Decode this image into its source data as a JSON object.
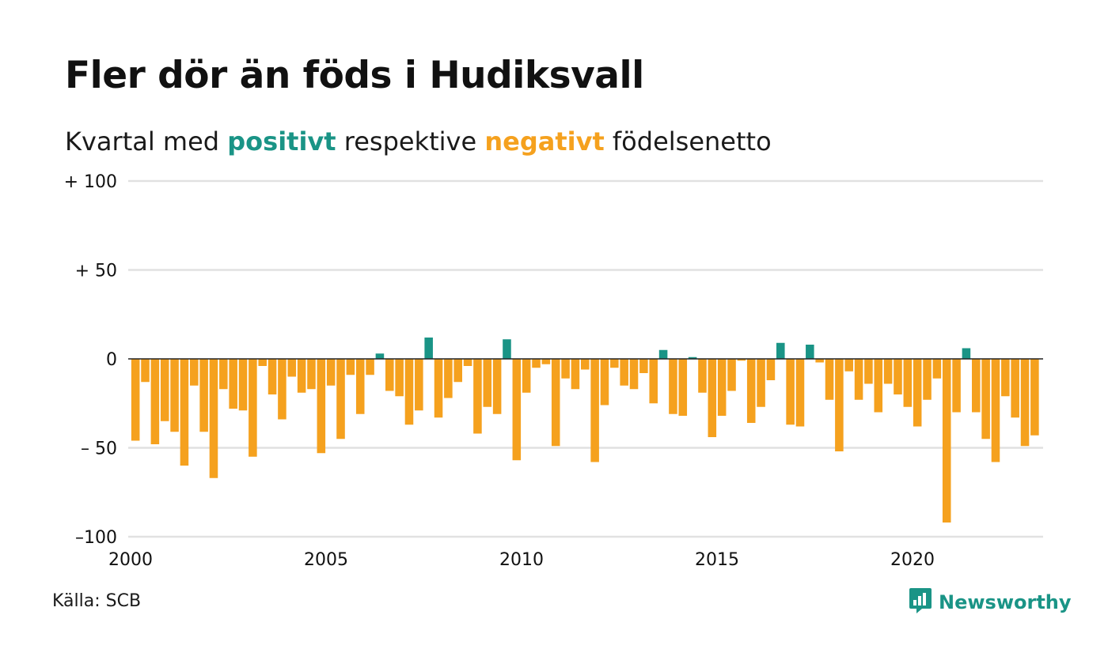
{
  "header": {
    "title": "Fler dör än föds i Hudiksvall",
    "subtitle_prefix": "Kvartal med",
    "subtitle_positive": "positivt",
    "subtitle_middle": "respektive",
    "subtitle_negative": "negativt",
    "subtitle_suffix": "födelsenetto"
  },
  "footer": {
    "source": "Källa: SCB",
    "brand": "Newsworthy"
  },
  "colors": {
    "positive": "#1a9486",
    "negative": "#f5a11e",
    "grid": "#e1e1e1",
    "zero_line": "#222222",
    "brand": "#1a9486"
  },
  "icons": {
    "brand_logo": "newsworthy-logo-icon"
  },
  "chart_data": {
    "type": "bar",
    "title": "Fler dör än föds i Hudiksvall",
    "subtitle": "Kvartal med positivt respektive negativt födelsenetto",
    "x_start_year": 2000,
    "x_period": "quarter",
    "x_ticks": [
      2000,
      2005,
      2010,
      2015,
      2020
    ],
    "x_tick_labels": [
      "2000",
      "2005",
      "2010",
      "2015",
      "2020"
    ],
    "y_ticks": [
      100,
      50,
      0,
      -50,
      -100
    ],
    "y_tick_labels": [
      "+ 100",
      "+  50",
      "0",
      "– 50",
      "–100"
    ],
    "ylim": [
      -100,
      100
    ],
    "grid": true,
    "values": [
      -46,
      -13,
      -48,
      -35,
      -41,
      -60,
      -15,
      -41,
      -67,
      -17,
      -28,
      -29,
      -55,
      -4,
      -20,
      -34,
      -10,
      -19,
      -17,
      -53,
      -15,
      -45,
      -9,
      -31,
      -9,
      3,
      -18,
      -21,
      -37,
      -29,
      12,
      -33,
      -22,
      -13,
      -4,
      -42,
      -27,
      -31,
      11,
      -57,
      -19,
      -5,
      -3,
      -49,
      -11,
      -17,
      -6,
      -58,
      -26,
      -5,
      -15,
      -17,
      -8,
      -25,
      5,
      -31,
      -32,
      1,
      -19,
      -44,
      -32,
      -18,
      -1,
      -36,
      -27,
      -12,
      9,
      -37,
      -38,
      8,
      -2,
      -23,
      -52,
      -7,
      -23,
      -14,
      -30,
      -14,
      -20,
      -27,
      -38,
      -23,
      -11,
      -92,
      -30,
      6,
      -30,
      -45,
      -58,
      -21,
      -33,
      -49,
      -43
    ]
  }
}
